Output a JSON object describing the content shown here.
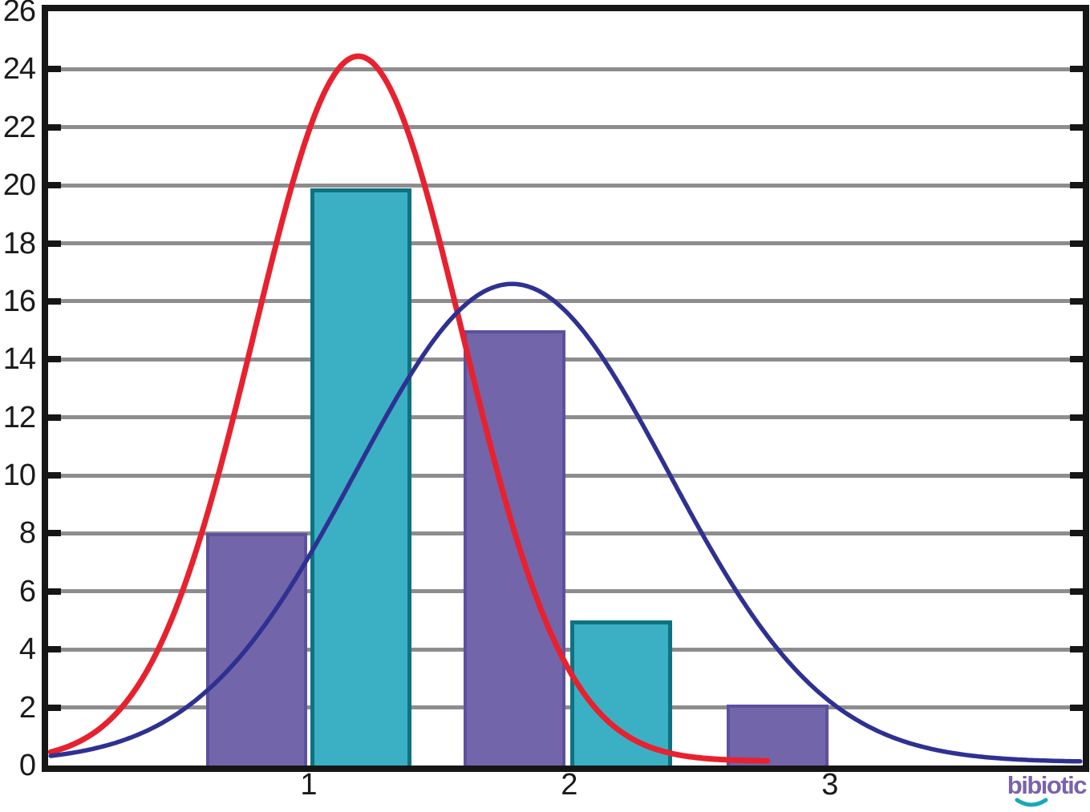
{
  "chart_data": {
    "type": "bar",
    "subtype": "grouped histogram with overlaid density curves",
    "title": "",
    "xlabel": "",
    "ylabel": "",
    "grid": "horizontal",
    "legend": "none",
    "x_axis": {
      "range": [
        0,
        3.97
      ],
      "ticks": [
        {
          "value": 1,
          "label": "1"
        },
        {
          "value": 2,
          "label": "2"
        },
        {
          "value": 3,
          "label": "3"
        }
      ]
    },
    "y_axis": {
      "range": [
        0,
        26
      ],
      "tick_values": [
        0,
        2,
        4,
        6,
        8,
        10,
        12,
        14,
        16,
        18,
        20,
        22,
        24,
        26
      ],
      "tick_labels": [
        "0",
        "2",
        "4",
        "6",
        "8",
        "10",
        "12",
        "14",
        "16",
        "18",
        "20",
        "22",
        "24",
        "26"
      ],
      "gridline_values": [
        2,
        4,
        6,
        8,
        10,
        12,
        14,
        16,
        18,
        20,
        22,
        24
      ]
    },
    "categories": [
      1,
      2,
      3
    ],
    "series": [
      {
        "name": "purple-bars",
        "type": "bar",
        "fill": "#7365aa",
        "border": "#5d509f",
        "values": [
          8,
          15,
          2.1
        ],
        "bars": [
          {
            "x_start": 0.605,
            "x_end": 0.995,
            "value": 8
          },
          {
            "x_start": 1.595,
            "x_end": 1.985,
            "value": 15
          },
          {
            "x_start": 2.605,
            "x_end": 2.995,
            "value": 2.1
          }
        ]
      },
      {
        "name": "teal-bars",
        "type": "bar",
        "fill": "#3bb0c5",
        "border": "#0e7280",
        "values": [
          19.9,
          5,
          0
        ],
        "bars": [
          {
            "x_start": 1.005,
            "x_end": 1.395,
            "value": 19.9
          },
          {
            "x_start": 2.005,
            "x_end": 2.395,
            "value": 5
          }
        ]
      },
      {
        "name": "red-density-curve",
        "type": "gaussian_curve",
        "color": "#e8212e",
        "stroke_width": 7,
        "peak_x": 1.19,
        "peak_y": 24.45,
        "sigma": 0.4,
        "baseline": 0.15,
        "x_domain": [
          0.01,
          2.76
        ]
      },
      {
        "name": "blue-density-curve",
        "type": "gaussian_curve",
        "color": "#2e3192",
        "stroke_width": 5.5,
        "peak_x": 1.78,
        "peak_y": 16.6,
        "sigma": 0.6,
        "baseline": 0.12,
        "x_domain": [
          0.01,
          3.96
        ]
      }
    ],
    "colors": {
      "axis": "#161616",
      "gridline": "#8d8d8f",
      "label_text": "#1a1a1a"
    }
  },
  "branding": {
    "logo_text": "bibiotic",
    "logo_color": "#7a63aa",
    "smile_color": "#17a9b9"
  }
}
